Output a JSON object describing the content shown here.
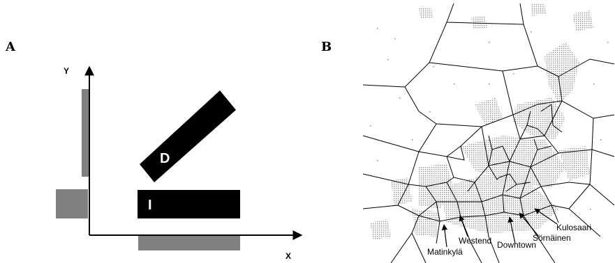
{
  "panel_a": {
    "letter": "A",
    "x_axis_label": "X",
    "y_axis_label": "Y",
    "shape_d_label": "D",
    "shape_i_label": "I",
    "shape_color": "#000000",
    "projection_color": "#808080"
  },
  "panel_b": {
    "letter": "B",
    "labels": {
      "kulosaari": "Kulosaari",
      "sornainen": "Sörnäinen",
      "downtown": "Downtown",
      "westend": "Westend",
      "matinkyla": "Matinkylä"
    },
    "dot_color": "#8c8c8c",
    "line_color": "#000000"
  }
}
